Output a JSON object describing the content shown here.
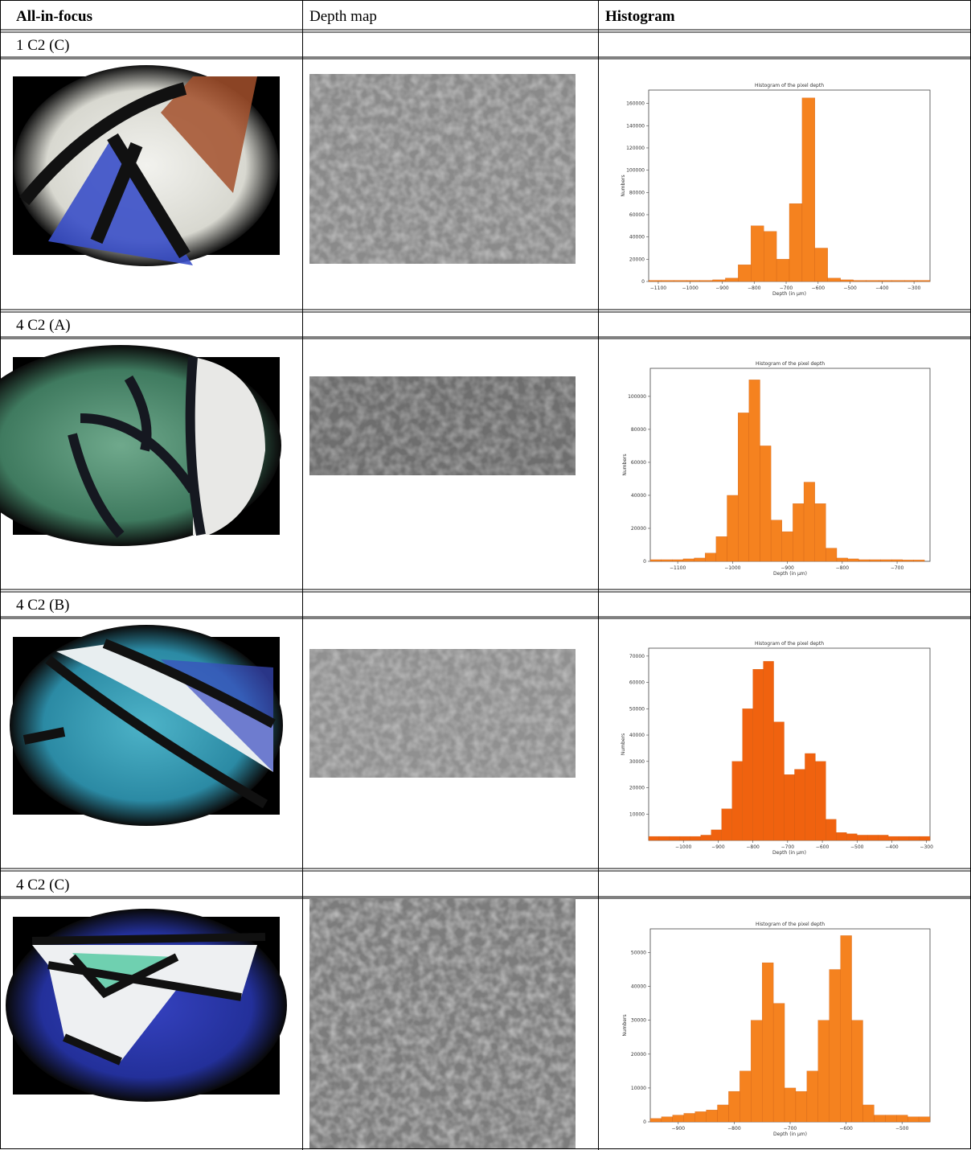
{
  "table": {
    "header": [
      "All-in-focus",
      "Depth map",
      "Histogram"
    ],
    "rows": [
      {
        "label": "1 C2 (C)",
        "histogram": {
          "type": "histogram",
          "title": "Histogram of the pixel depth",
          "xlabel": "Depth (in µm)",
          "ylabel": "Numbers",
          "color": "#f5821f",
          "bins": [
            -1130,
            -1090,
            -1050,
            -1010,
            -970,
            -930,
            -890,
            -850,
            -810,
            -770,
            -730,
            -690,
            -650,
            -610,
            -570,
            -530,
            -490,
            -450,
            -410,
            -370,
            -330,
            -290,
            -250
          ],
          "counts": [
            1000,
            1000,
            1000,
            1000,
            1000,
            1500,
            3000,
            15000,
            50000,
            45000,
            20000,
            70000,
            165000,
            30000,
            3000,
            1500,
            1000,
            1000,
            1000,
            1000,
            1000,
            1000
          ],
          "xlim": [
            -1130,
            -250
          ],
          "ylim": [
            0,
            172000
          ],
          "xticks": [
            {
              "value": -1100,
              "label": "−1100"
            },
            {
              "value": -1000,
              "label": "−1000"
            },
            {
              "value": -900,
              "label": "−900"
            },
            {
              "value": -800,
              "label": "−800"
            },
            {
              "value": -700,
              "label": "−700"
            },
            {
              "value": -600,
              "label": "−600"
            },
            {
              "value": -500,
              "label": "−500"
            },
            {
              "value": -400,
              "label": "−400"
            },
            {
              "value": -300,
              "label": "−300"
            }
          ],
          "yticks": [
            0,
            20000,
            40000,
            60000,
            80000,
            100000,
            120000,
            140000,
            160000
          ]
        }
      },
      {
        "label": "4 C2 (A)",
        "histogram": {
          "type": "histogram",
          "title": "Histogram of the pixel depth",
          "xlabel": "Depth (in µm)",
          "ylabel": "Numbers",
          "color": "#f5821f",
          "bins": [
            -1150,
            -1130,
            -1110,
            -1090,
            -1070,
            -1050,
            -1030,
            -1010,
            -990,
            -970,
            -950,
            -930,
            -910,
            -890,
            -870,
            -850,
            -830,
            -810,
            -790,
            -770,
            -750,
            -730,
            -710,
            -690,
            -670,
            -650
          ],
          "counts": [
            1000,
            1000,
            1000,
            1500,
            2000,
            5000,
            15000,
            40000,
            90000,
            110000,
            70000,
            25000,
            18000,
            35000,
            48000,
            35000,
            8000,
            2000,
            1500,
            1000,
            1000,
            1000,
            1000,
            800,
            800
          ],
          "xlim": [
            -1150,
            -640
          ],
          "ylim": [
            0,
            117000
          ],
          "xticks": [
            {
              "value": -1100,
              "label": "−1100"
            },
            {
              "value": -1000,
              "label": "−1000"
            },
            {
              "value": -900,
              "label": "−900"
            },
            {
              "value": -800,
              "label": "−800"
            },
            {
              "value": -700,
              "label": "−700"
            }
          ],
          "yticks": [
            0,
            20000,
            40000,
            60000,
            80000,
            100000
          ]
        }
      },
      {
        "label": "4 C2 (B)",
        "histogram": {
          "type": "histogram",
          "title": "Histogram of the pixel depth",
          "xlabel": "Depth (in µm)",
          "ylabel": "Numbers",
          "color": "#f0620f",
          "bins": [
            -1100,
            -1070,
            -1040,
            -1010,
            -980,
            -950,
            -920,
            -890,
            -860,
            -830,
            -800,
            -770,
            -740,
            -710,
            -680,
            -650,
            -620,
            -590,
            -560,
            -530,
            -500,
            -470,
            -440,
            -410,
            -380,
            -350,
            -320,
            -290
          ],
          "counts": [
            1500,
            1500,
            1500,
            1500,
            1500,
            2000,
            4000,
            12000,
            30000,
            50000,
            65000,
            68000,
            45000,
            25000,
            27000,
            33000,
            30000,
            8000,
            3000,
            2500,
            2000,
            2000,
            2000,
            1500,
            1500,
            1500,
            1500
          ],
          "xlim": [
            -1100,
            -290
          ],
          "ylim": [
            0,
            73000
          ],
          "xticks": [
            {
              "value": -1000,
              "label": "−1000"
            },
            {
              "value": -900,
              "label": "−900"
            },
            {
              "value": -800,
              "label": "−800"
            },
            {
              "value": -700,
              "label": "−700"
            },
            {
              "value": -600,
              "label": "−600"
            },
            {
              "value": -500,
              "label": "−500"
            },
            {
              "value": -400,
              "label": "−400"
            },
            {
              "value": -300,
              "label": "−300"
            }
          ],
          "yticks": [
            10000,
            20000,
            30000,
            40000,
            50000,
            60000,
            70000
          ]
        }
      },
      {
        "label": "4 C2 (C)",
        "histogram": {
          "type": "histogram",
          "title": "Histogram of the pixel depth",
          "xlabel": "Depth (in µm)",
          "ylabel": "Numbers",
          "color": "#f5821f",
          "bins": [
            -950,
            -930,
            -910,
            -890,
            -870,
            -850,
            -830,
            -810,
            -790,
            -770,
            -750,
            -730,
            -710,
            -690,
            -670,
            -650,
            -630,
            -610,
            -590,
            -570,
            -550,
            -530,
            -510,
            -490,
            -470,
            -450
          ],
          "counts": [
            1000,
            1500,
            2000,
            2500,
            3000,
            3500,
            5000,
            9000,
            15000,
            30000,
            47000,
            35000,
            10000,
            9000,
            15000,
            30000,
            45000,
            55000,
            30000,
            5000,
            2000,
            2000,
            2000,
            1500,
            1500
          ],
          "xlim": [
            -950,
            -450
          ],
          "ylim": [
            0,
            57000
          ],
          "xticks": [
            {
              "value": -900,
              "label": "−900"
            },
            {
              "value": -800,
              "label": "−800"
            },
            {
              "value": -700,
              "label": "−700"
            },
            {
              "value": -600,
              "label": "−600"
            },
            {
              "value": -500,
              "label": "−500"
            }
          ],
          "yticks": [
            0,
            10000,
            20000,
            30000,
            40000,
            50000
          ]
        }
      }
    ]
  }
}
